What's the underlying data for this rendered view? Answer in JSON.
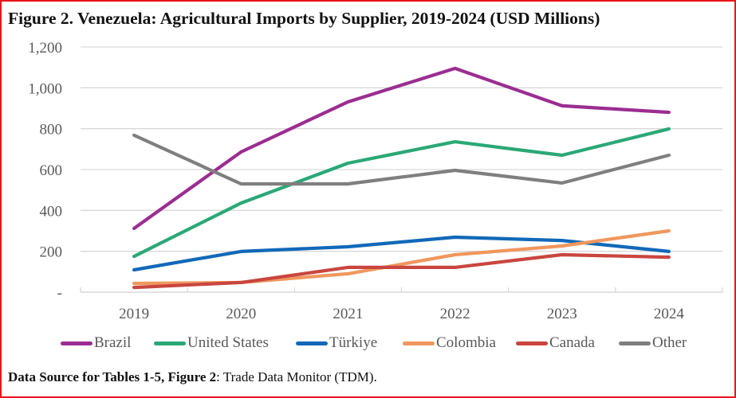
{
  "chart_data": {
    "type": "line",
    "title": "Figure 2. Venezuela: Agricultural Imports by Supplier, 2019-2024 (USD Millions)",
    "xlabel": "",
    "ylabel": "",
    "categories": [
      "2019",
      "2020",
      "2021",
      "2022",
      "2023",
      "2024"
    ],
    "ylim": [
      0,
      1200
    ],
    "yticks": [
      0,
      200,
      400,
      600,
      800,
      1000,
      1200
    ],
    "ytick_labels": [
      "-",
      "200",
      "400",
      "600",
      "800",
      "1,000",
      "1,200"
    ],
    "grid": true,
    "legend_position": "bottom",
    "series": [
      {
        "name": "Brazil",
        "color": "#9b2d91",
        "values": [
          312,
          686,
          931,
          1095,
          912,
          880
        ]
      },
      {
        "name": "United States",
        "color": "#2aa876",
        "values": [
          175,
          436,
          631,
          736,
          670,
          799
        ]
      },
      {
        "name": "Türkiye",
        "color": "#1169b8",
        "values": [
          109,
          199,
          222,
          269,
          253,
          199
        ]
      },
      {
        "name": "Colombia",
        "color": "#f0975e",
        "values": [
          43,
          47,
          90,
          183,
          226,
          300
        ]
      },
      {
        "name": "Canada",
        "color": "#c9463f",
        "values": [
          23,
          47,
          121,
          121,
          183,
          171
        ]
      },
      {
        "name": "Other",
        "color": "#7f7f7f",
        "values": [
          768,
          530,
          530,
          596,
          534,
          670
        ]
      }
    ]
  },
  "source": {
    "label": "Data Source for Tables 1-5, Figure 2",
    "text": ": Trade Data Monitor (TDM)."
  },
  "colors": {
    "border": "#e8141b",
    "grid": "#d9d9d9",
    "axis_text": "#595959"
  }
}
